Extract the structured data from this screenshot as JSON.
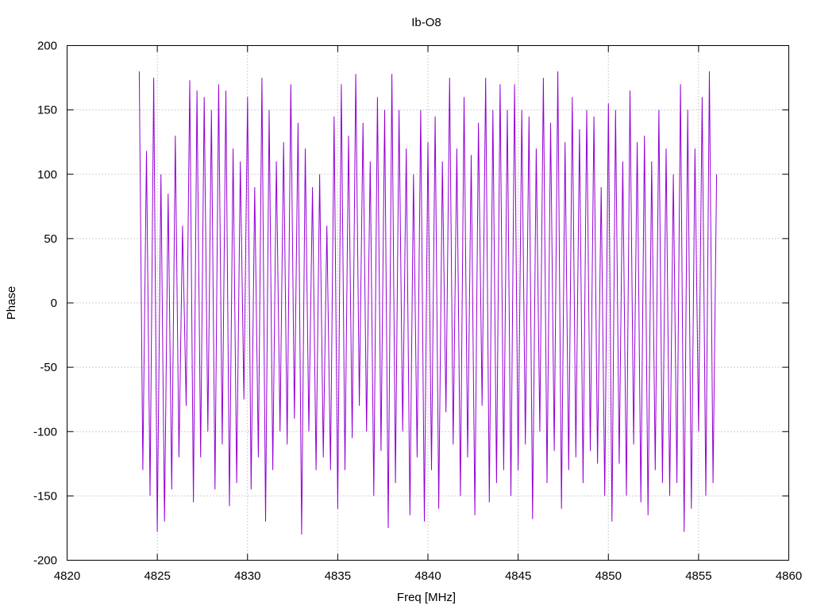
{
  "chart_data": {
    "type": "line",
    "title": "Ib-O8",
    "xlabel": "Freq [MHz]",
    "ylabel": "Phase",
    "xlim": [
      4820,
      4860
    ],
    "ylim": [
      -200,
      200
    ],
    "x_ticks": [
      "4820",
      "4825",
      "4830",
      "4835",
      "4840",
      "4845",
      "4850",
      "4855",
      "4860"
    ],
    "y_ticks": [
      "200",
      "150",
      "100",
      "50",
      "0",
      "-50",
      "-100",
      "-150",
      "-200"
    ],
    "grid": true,
    "legend": "none",
    "series": [
      {
        "color": "#9400d3",
        "x": [
          4824.0,
          4824.2,
          4824.4,
          4824.6,
          4824.8,
          4825.0,
          4825.2,
          4825.4,
          4825.6,
          4825.8,
          4826.0,
          4826.2,
          4826.4,
          4826.6,
          4826.8,
          4827.0,
          4827.2,
          4827.4,
          4827.6,
          4827.8,
          4828.0,
          4828.2,
          4828.4,
          4828.6,
          4828.8,
          4829.0,
          4829.2,
          4829.4,
          4829.6,
          4829.8,
          4830.0,
          4830.2,
          4830.4,
          4830.6,
          4830.8,
          4831.0,
          4831.2,
          4831.4,
          4831.6,
          4831.8,
          4832.0,
          4832.2,
          4832.4,
          4832.6,
          4832.8,
          4833.0,
          4833.2,
          4833.4,
          4833.6,
          4833.8,
          4834.0,
          4834.2,
          4834.4,
          4834.6,
          4834.8,
          4835.0,
          4835.2,
          4835.4,
          4835.6,
          4835.8,
          4836.0,
          4836.2,
          4836.4,
          4836.6,
          4836.8,
          4837.0,
          4837.2,
          4837.4,
          4837.6,
          4837.8,
          4838.0,
          4838.2,
          4838.4,
          4838.6,
          4838.8,
          4839.0,
          4839.2,
          4839.4,
          4839.6,
          4839.8,
          4840.0,
          4840.2,
          4840.4,
          4840.6,
          4840.8,
          4841.0,
          4841.2,
          4841.4,
          4841.6,
          4841.8,
          4842.0,
          4842.2,
          4842.4,
          4842.6,
          4842.8,
          4843.0,
          4843.2,
          4843.4,
          4843.6,
          4843.8,
          4844.0,
          4844.2,
          4844.4,
          4844.6,
          4844.8,
          4845.0,
          4845.2,
          4845.4,
          4845.6,
          4845.8,
          4846.0,
          4846.2,
          4846.4,
          4846.6,
          4846.8,
          4847.0,
          4847.2,
          4847.4,
          4847.6,
          4847.8,
          4848.0,
          4848.2,
          4848.4,
          4848.6,
          4848.8,
          4849.0,
          4849.2,
          4849.4,
          4849.6,
          4849.8,
          4850.0,
          4850.2,
          4850.4,
          4850.6,
          4850.8,
          4851.0,
          4851.2,
          4851.4,
          4851.6,
          4851.8,
          4852.0,
          4852.2,
          4852.4,
          4852.6,
          4852.8,
          4853.0,
          4853.2,
          4853.4,
          4853.6,
          4853.8,
          4854.0,
          4854.2,
          4854.4,
          4854.6,
          4854.8,
          4855.0,
          4855.2,
          4855.4,
          4855.6,
          4855.8,
          4856.0
        ],
        "y": [
          180,
          -130,
          118,
          -150,
          175,
          -178,
          100,
          -170,
          85,
          -145,
          130,
          -120,
          60,
          -80,
          173,
          -155,
          165,
          -120,
          160,
          -100,
          150,
          -145,
          170,
          -110,
          165,
          -158,
          120,
          -140,
          110,
          -75,
          160,
          -145,
          90,
          -120,
          175,
          -170,
          150,
          -130,
          110,
          -100,
          125,
          -110,
          170,
          -90,
          140,
          -180,
          120,
          -100,
          90,
          -130,
          100,
          -120,
          60,
          -130,
          145,
          -160,
          170,
          -130,
          130,
          -105,
          178,
          -80,
          140,
          -100,
          110,
          -150,
          160,
          -115,
          150,
          -175,
          178,
          -140,
          150,
          -100,
          120,
          -165,
          100,
          -120,
          150,
          -170,
          125,
          -130,
          145,
          -160,
          110,
          -85,
          175,
          -110,
          120,
          -150,
          160,
          -120,
          115,
          -165,
          140,
          -80,
          175,
          -155,
          150,
          -140,
          170,
          -130,
          150,
          -150,
          170,
          -130,
          150,
          -110,
          145,
          -168,
          120,
          -100,
          175,
          -140,
          140,
          -115,
          180,
          -160,
          125,
          -130,
          160,
          -120,
          135,
          -140,
          150,
          -115,
          145,
          -125,
          90,
          -150,
          155,
          -170,
          150,
          -125,
          110,
          -150,
          165,
          -110,
          125,
          -155,
          130,
          -165,
          110,
          -130,
          150,
          -140,
          120,
          -150,
          100,
          -140,
          170,
          -178,
          150,
          -160,
          120,
          -100,
          160,
          -150,
          180,
          -140,
          100
        ]
      }
    ]
  }
}
